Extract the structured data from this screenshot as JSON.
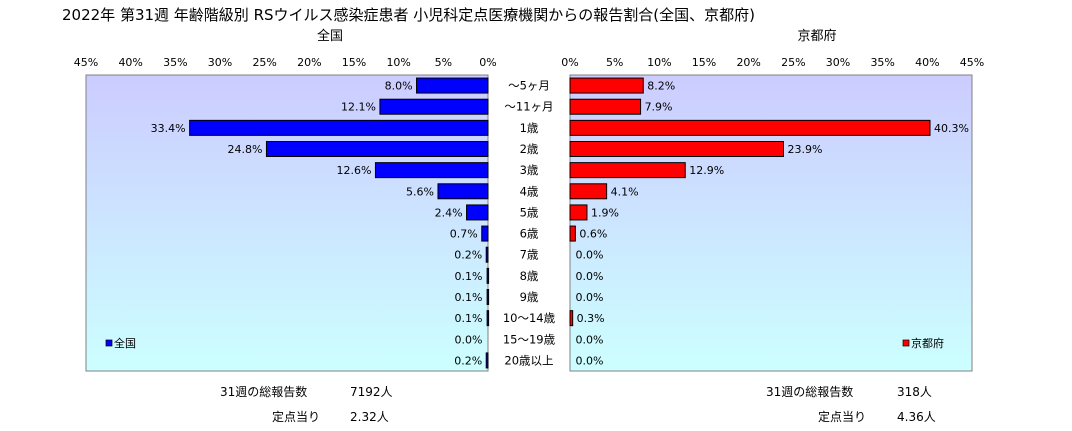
{
  "chart_data": {
    "type": "bar",
    "title": "2022年 第31週 年齢階級別 RSウイルス感染症患者 小児科定点医療機関からの報告割合(全国、京都府)",
    "categories": [
      "～5ヶ月",
      "～11ヶ月",
      "1歳",
      "2歳",
      "3歳",
      "4歳",
      "5歳",
      "6歳",
      "7歳",
      "8歳",
      "9歳",
      "10～14歳",
      "15～19歳",
      "20歳以上"
    ],
    "xlim": [
      0,
      45
    ],
    "tick_labels": [
      "0%",
      "5%",
      "10%",
      "15%",
      "20%",
      "25%",
      "30%",
      "35%",
      "40%",
      "45%"
    ],
    "colors": {
      "national": "#0000ff",
      "kyoto": "#ff0000",
      "plot_bg_top": "#ccccff",
      "plot_bg_bottom": "#ccffff"
    },
    "series": [
      {
        "name": "全国",
        "panel_title": "全国",
        "values": [
          8.0,
          12.1,
          33.4,
          24.8,
          12.6,
          5.6,
          2.4,
          0.7,
          0.2,
          0.1,
          0.1,
          0.1,
          0.0,
          0.2
        ],
        "labels": [
          "8.0%",
          "12.1%",
          "33.4%",
          "24.8%",
          "12.6%",
          "5.6%",
          "2.4%",
          "0.7%",
          "0.2%",
          "0.1%",
          "0.1%",
          "0.1%",
          "0.0%",
          "0.2%"
        ],
        "legend": "全国"
      },
      {
        "name": "京都府",
        "panel_title": "京都府",
        "values": [
          8.2,
          7.9,
          40.3,
          23.9,
          12.9,
          4.1,
          1.9,
          0.6,
          0.0,
          0.0,
          0.0,
          0.3,
          0.0,
          0.0
        ],
        "labels": [
          "8.2%",
          "7.9%",
          "40.3%",
          "23.9%",
          "12.9%",
          "4.1%",
          "1.9%",
          "0.6%",
          "0.0%",
          "0.0%",
          "0.0%",
          "0.3%",
          "0.0%",
          "0.0%"
        ],
        "legend": "京都府"
      }
    ],
    "footer": {
      "national": {
        "reports_label": "31週の総報告数",
        "reports_value": "7192人",
        "per_label": "定点当り",
        "per_value": "2.32人"
      },
      "kyoto": {
        "reports_label": "31週の総報告数",
        "reports_value": "318人",
        "per_label": "定点当り",
        "per_value": "4.36人"
      }
    }
  }
}
